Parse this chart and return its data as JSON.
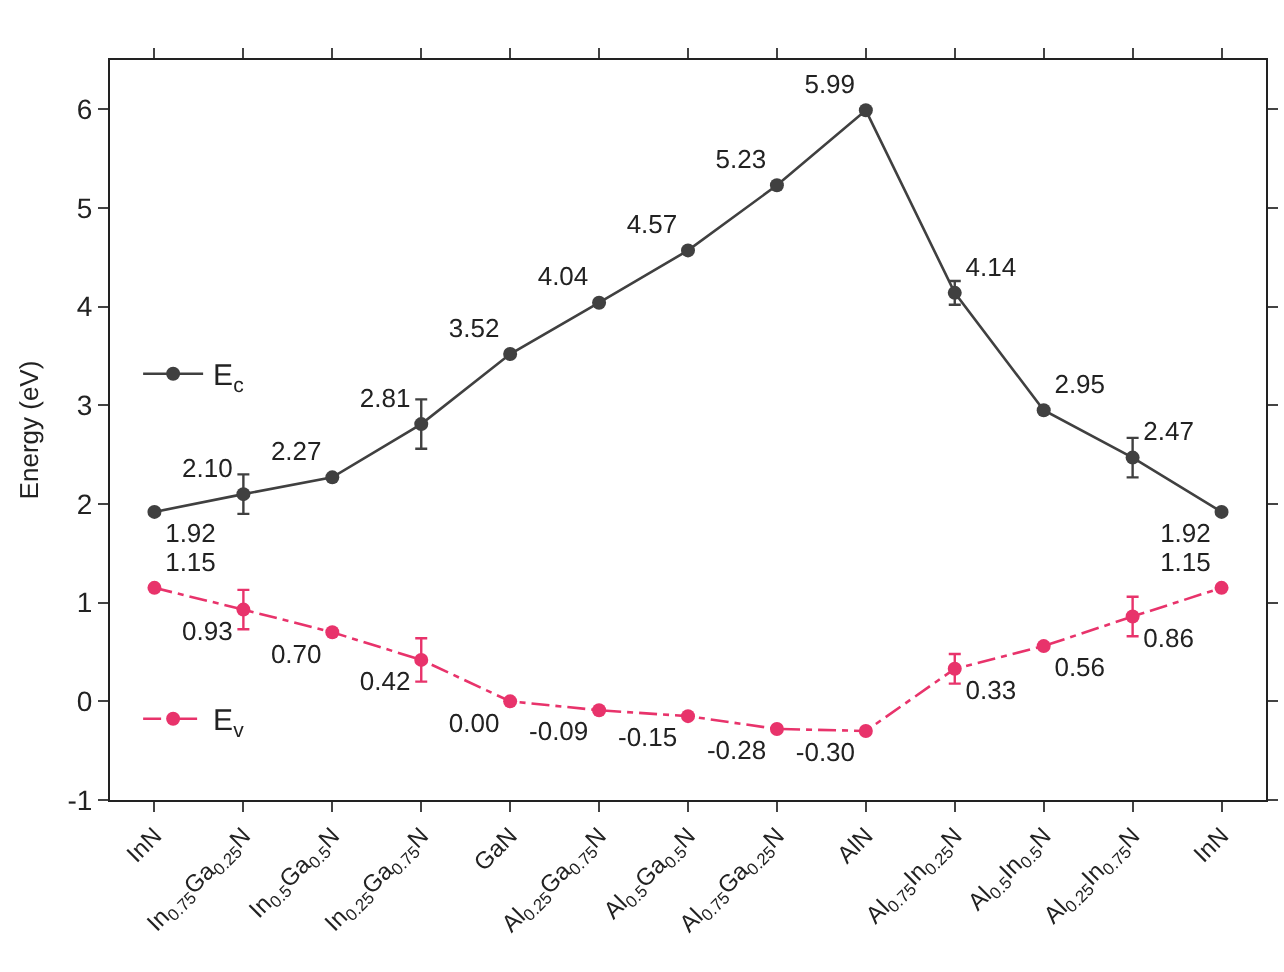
{
  "chart_data": {
    "type": "line",
    "ylabel": "Energy (eV)",
    "categories": [
      "InN",
      "In$_{0.75}$Ga$_{0.25}$N",
      "In$_{0.5}$Ga$_{0.5}$N",
      "In$_{0.25}$Ga$_{0.75}$N",
      "GaN",
      "Al$_{0.25}$Ga$_{0.75}$N",
      "Al$_{0.5}$Ga$_{0.5}$N",
      "Al$_{0.75}$Ga$_{0.25}$N",
      "AlN",
      "Al$_{0.75}$In$_{0.25}$N",
      "Al$_{0.5}$In$_{0.5}$N",
      "Al$_{0.25}$In$_{0.75}$N",
      "InN"
    ],
    "ylim": [
      -1,
      6.5
    ],
    "yticks": [
      -1,
      0,
      1,
      2,
      3,
      4,
      5,
      6
    ],
    "series": [
      {
        "name": "E$_{c}$",
        "color": "#404040",
        "line_style": "solid",
        "values": [
          1.92,
          2.1,
          2.27,
          2.81,
          3.52,
          4.04,
          4.57,
          5.23,
          5.99,
          4.14,
          2.95,
          2.47,
          1.92
        ],
        "errors": [
          null,
          0.2,
          null,
          0.25,
          null,
          null,
          null,
          null,
          null,
          0.12,
          null,
          0.2,
          null
        ],
        "value_labels": [
          "1.92",
          "2.10",
          "2.27",
          "2.81",
          "3.52",
          "4.04",
          "4.57",
          "5.23",
          "5.99",
          "4.14",
          "2.95",
          "2.47",
          "1.92"
        ]
      },
      {
        "name": "E$_{v}$",
        "color": "#e8336b",
        "line_style": "dashed",
        "values": [
          1.15,
          0.93,
          0.7,
          0.42,
          0.0,
          -0.09,
          -0.15,
          -0.28,
          -0.3,
          0.33,
          0.56,
          0.86,
          1.15
        ],
        "errors": [
          null,
          0.2,
          null,
          0.22,
          null,
          null,
          null,
          null,
          null,
          0.15,
          null,
          0.2,
          null
        ],
        "value_labels": [
          "1.15",
          "0.93",
          "0.70",
          "0.42",
          "0.00",
          "-0.09",
          "-0.15",
          "-0.28",
          "-0.30",
          "0.33",
          "0.56",
          "0.86",
          "1.15"
        ]
      }
    ],
    "marker": "circle",
    "legend": "left",
    "grid": false
  }
}
